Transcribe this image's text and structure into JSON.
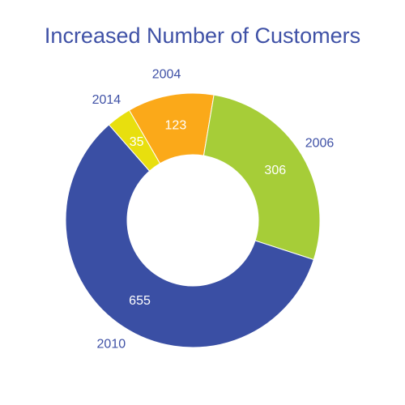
{
  "chart_data": {
    "type": "pie",
    "donut": true,
    "title": "Increased Number of Customers",
    "categories": [
      "2004",
      "2006",
      "2010",
      "2014"
    ],
    "values": [
      123,
      306,
      655,
      35
    ],
    "colors": [
      "#fba919",
      "#a6cd38",
      "#3a4fa4",
      "#e8df0e"
    ],
    "label_color": "#ffffff",
    "title_color": "#3f51a6",
    "category_label_color": "#3f51a6"
  }
}
